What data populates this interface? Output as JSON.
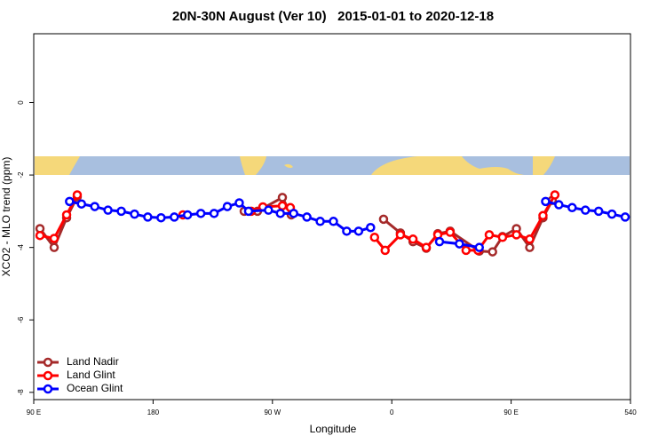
{
  "chart_data": {
    "type": "line",
    "title": "20N-30N August (Ver 10)   2015-01-01 to 2020-12-18",
    "xlabel": "Longitude",
    "ylabel": "XCO2 - MLO trend (ppm)",
    "xlim": [
      90,
      540
    ],
    "ylim": [
      -8.2,
      1.9
    ],
    "xticks": [
      {
        "value": 90,
        "label": "90 E"
      },
      180,
      {
        "value": 270,
        "label": "90 W"
      },
      {
        "value": 360,
        "label": "0"
      },
      {
        "value": 450,
        "label": "90 E"
      },
      540
    ],
    "yticks": [
      0,
      -2,
      -4,
      -6,
      -8
    ],
    "legend": "bottom-left",
    "series": [
      {
        "name": "Land Nadir",
        "color": "#a52a2a",
        "x": [
          94.7,
          105.4,
          114.8,
          122.8,
          null,
          248.7,
          258.7,
          277.5,
          284.2,
          null,
          353.8,
          366.5,
          376,
          386,
          394.7,
          404,
          426,
          436,
          443.5,
          454,
          464,
          474,
          481
        ],
        "values": [
          -3.48,
          -4.0,
          -3.18,
          -2.6,
          null,
          -3.0,
          -3.0,
          -2.62,
          -3.1,
          null,
          -3.22,
          -3.6,
          -3.84,
          -4.02,
          -3.62,
          -3.55,
          -4.1,
          -4.12,
          -3.7,
          -3.48,
          -4.0,
          -3.18,
          -2.7
        ]
      },
      {
        "name": "Land Glint",
        "color": "#ff0000",
        "x": [
          94.7,
          105.4,
          114.8,
          122.8,
          null,
          202.5,
          null,
          254,
          262.8,
          277.5,
          283.5,
          null,
          347,
          355,
          366.5,
          376,
          386,
          394.7,
          404,
          416,
          425,
          433.5,
          443.5,
          454,
          464,
          474,
          483
        ],
        "values": [
          -3.67,
          -3.75,
          -3.1,
          -2.55,
          null,
          -3.1,
          null,
          -3.0,
          -2.88,
          -2.85,
          -2.9,
          null,
          -3.72,
          -4.08,
          -3.65,
          -3.77,
          -4.0,
          -3.65,
          -3.58,
          -4.08,
          -4.08,
          -3.65,
          -3.72,
          -3.65,
          -3.77,
          -3.12,
          -2.55
        ]
      },
      {
        "name": "Ocean Glint",
        "color": "#0000ff",
        "x": [
          117,
          126,
          136,
          146,
          156,
          166,
          176,
          186,
          196,
          206,
          216,
          226,
          236,
          245,
          252,
          267,
          276,
          286,
          296,
          306,
          316,
          326,
          335,
          344,
          null,
          396,
          411,
          426,
          null,
          476,
          486,
          496,
          506,
          516,
          526,
          536
        ],
        "values": [
          -2.73,
          -2.8,
          -2.87,
          -2.97,
          -3.0,
          -3.08,
          -3.16,
          -3.18,
          -3.16,
          -3.1,
          -3.06,
          -3.06,
          -2.87,
          -2.77,
          -3.0,
          -2.97,
          -3.06,
          -3.06,
          -3.16,
          -3.28,
          -3.28,
          -3.55,
          -3.55,
          -3.45,
          null,
          -3.84,
          -3.9,
          -4.0,
          null,
          -2.73,
          -2.82,
          -2.9,
          -2.97,
          -3.0,
          -3.08,
          -3.16
        ]
      }
    ]
  }
}
